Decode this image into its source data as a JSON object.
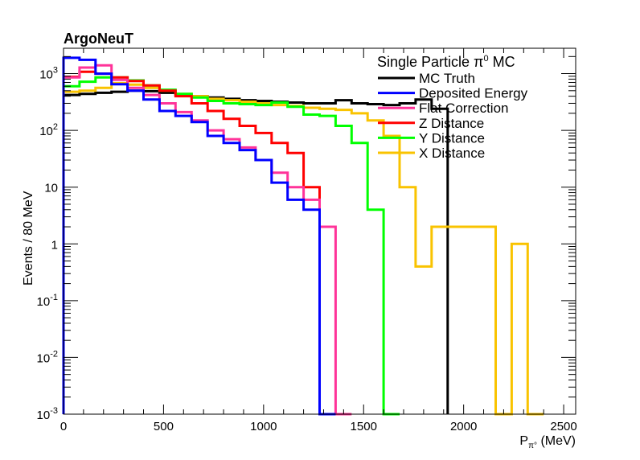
{
  "chart_data": {
    "type": "histogram-step",
    "experiment_label": "ArgoNeuT",
    "xlabel": {
      "main": "P",
      "sub": "π°",
      "unit": " (MeV)"
    },
    "ylabel": "Events / 80 MeV",
    "xlim": [
      0,
      2560
    ],
    "ylim": [
      0.001,
      2800
    ],
    "yscale": "log",
    "bin_width": 80,
    "x_ticks": [
      0,
      500,
      1000,
      1500,
      2000,
      2500
    ],
    "y_ticks": [
      {
        "value": 0.001,
        "base": "10",
        "exp": "-3"
      },
      {
        "value": 0.01,
        "base": "10",
        "exp": "-2"
      },
      {
        "value": 0.1,
        "base": "10",
        "exp": "-1"
      },
      {
        "value": 1,
        "base": "1",
        "exp": ""
      },
      {
        "value": 10,
        "base": "10",
        "exp": ""
      },
      {
        "value": 100,
        "base": "10",
        "exp": "2"
      },
      {
        "value": 1000,
        "base": "10",
        "exp": "3"
      }
    ],
    "legend": {
      "title": {
        "prefix": "Single Particle π",
        "sup": "0",
        "suffix": " MC"
      },
      "position": "top-right"
    },
    "series": [
      {
        "name": "MC Truth",
        "color": "#000000",
        "bin_start": 0,
        "values": [
          420,
          440,
          460,
          480,
          500,
          490,
          460,
          430,
          400,
          380,
          360,
          340,
          330,
          320,
          310,
          300,
          300,
          340,
          300,
          290,
          280,
          300,
          350,
          240
        ]
      },
      {
        "name": "X Distance",
        "color": "#f9c300",
        "bin_start": 0,
        "values": [
          480,
          500,
          560,
          680,
          640,
          560,
          500,
          440,
          400,
          360,
          340,
          320,
          300,
          280,
          270,
          250,
          240,
          230,
          200,
          150,
          80,
          10,
          0.4,
          2,
          2,
          2,
          2,
          0.001,
          1,
          0.001
        ]
      },
      {
        "name": "Y Distance",
        "color": "#00ff00",
        "bin_start": 0,
        "values": [
          600,
          720,
          860,
          860,
          760,
          620,
          520,
          440,
          380,
          330,
          300,
          290,
          280,
          310,
          260,
          190,
          180,
          120,
          60,
          4,
          0.001
        ]
      },
      {
        "name": "Z Distance",
        "color": "#ff0000",
        "bin_start": 0,
        "values": [
          880,
          1080,
          1000,
          860,
          740,
          620,
          500,
          400,
          300,
          220,
          160,
          120,
          90,
          60,
          40,
          10,
          0.001
        ]
      },
      {
        "name": "Flat Correction",
        "color": "#ff3399",
        "bin_start": 0,
        "values": [
          860,
          1280,
          1400,
          780,
          560,
          420,
          300,
          210,
          150,
          100,
          70,
          50,
          30,
          18,
          10,
          6,
          2,
          0.001
        ]
      },
      {
        "name": "Deposited Energy",
        "color": "#0000ff",
        "bin_start": 0,
        "values": [
          1900,
          1750,
          1000,
          650,
          500,
          350,
          220,
          180,
          140,
          80,
          60,
          45,
          30,
          12,
          6,
          4,
          0.001
        ]
      }
    ]
  }
}
